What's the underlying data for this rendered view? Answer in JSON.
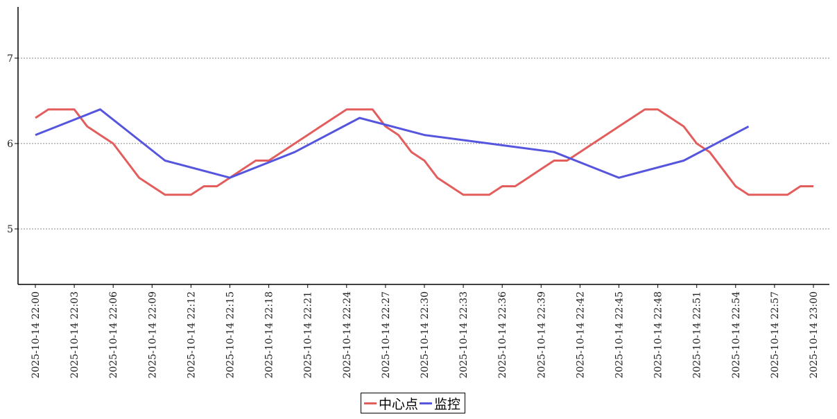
{
  "chart_data": {
    "type": "line",
    "title": "",
    "xlabel": "",
    "ylabel": "",
    "ylim": [
      4.35,
      7.6
    ],
    "yticks": [
      5,
      6,
      7
    ],
    "grid": "horizontal-dashed",
    "legend_position": "bottom-center",
    "xtick_labels": [
      "2025-10-14 22:00",
      "2025-10-14 22:03",
      "2025-10-14 22:06",
      "2025-10-14 22:09",
      "2025-10-14 22:12",
      "2025-10-14 22:15",
      "2025-10-14 22:18",
      "2025-10-14 22:21",
      "2025-10-14 22:24",
      "2025-10-14 22:27",
      "2025-10-14 22:30",
      "2025-10-14 22:33",
      "2025-10-14 22:36",
      "2025-10-14 22:39",
      "2025-10-14 22:42",
      "2025-10-14 22:45",
      "2025-10-14 22:48",
      "2025-10-14 22:51",
      "2025-10-14 22:54",
      "2025-10-14 22:57",
      "2025-10-14 23:00"
    ],
    "series": [
      {
        "name": "中心点",
        "color": "#e35d5d",
        "x": [
          "22:00",
          "22:01",
          "22:02",
          "22:03",
          "22:04",
          "22:05",
          "22:06",
          "22:07",
          "22:08",
          "22:09",
          "22:10",
          "22:11",
          "22:12",
          "22:13",
          "22:14",
          "22:15",
          "22:16",
          "22:17",
          "22:18",
          "22:19",
          "22:20",
          "22:21",
          "22:22",
          "22:23",
          "22:24",
          "22:25",
          "22:26",
          "22:27",
          "22:28",
          "22:29",
          "22:30",
          "22:31",
          "22:32",
          "22:33",
          "22:34",
          "22:35",
          "22:36",
          "22:37",
          "22:38",
          "22:39",
          "22:40",
          "22:41",
          "22:42",
          "22:43",
          "22:44",
          "22:45",
          "22:46",
          "22:47",
          "22:48",
          "22:49",
          "22:50",
          "22:51",
          "22:52",
          "22:53",
          "22:54",
          "22:55",
          "22:56",
          "22:57",
          "22:58",
          "22:59",
          "23:00"
        ],
        "values": [
          6.3,
          6.4,
          6.4,
          6.4,
          6.2,
          6.1,
          6.0,
          5.8,
          5.6,
          5.5,
          5.4,
          5.4,
          5.4,
          5.5,
          5.5,
          5.6,
          5.7,
          5.8,
          5.8,
          5.9,
          6.0,
          6.1,
          6.2,
          6.3,
          6.4,
          6.4,
          6.4,
          6.2,
          6.1,
          5.9,
          5.8,
          5.6,
          5.5,
          5.4,
          5.4,
          5.4,
          5.5,
          5.5,
          5.6,
          5.7,
          5.8,
          5.8,
          5.9,
          6.0,
          6.1,
          6.2,
          6.3,
          6.4,
          6.4,
          6.3,
          6.2,
          6.0,
          5.9,
          5.7,
          5.5,
          5.4,
          5.4,
          5.4,
          5.4,
          5.5,
          5.5
        ]
      },
      {
        "name": "监控",
        "color": "#5555dd",
        "x": [
          "22:00",
          "22:05",
          "22:10",
          "22:15",
          "22:20",
          "22:25",
          "22:30",
          "22:35",
          "22:40",
          "22:45",
          "22:50",
          "22:55"
        ],
        "values": [
          6.1,
          6.4,
          5.8,
          5.6,
          5.9,
          6.3,
          6.1,
          6.0,
          5.9,
          5.6,
          5.8,
          6.2
        ]
      }
    ]
  }
}
